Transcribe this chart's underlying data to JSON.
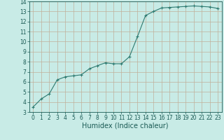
{
  "x": [
    0,
    1,
    2,
    3,
    4,
    5,
    6,
    7,
    8,
    9,
    10,
    11,
    12,
    13,
    14,
    15,
    16,
    17,
    18,
    19,
    20,
    21,
    22,
    23
  ],
  "y": [
    3.5,
    4.3,
    4.8,
    6.2,
    6.5,
    6.6,
    6.7,
    7.3,
    7.6,
    7.9,
    7.8,
    7.8,
    8.5,
    10.5,
    12.6,
    13.0,
    13.35,
    13.4,
    13.45,
    13.5,
    13.55,
    13.5,
    13.45,
    13.3
  ],
  "line_color": "#2d7a70",
  "marker": "+",
  "marker_size": 3,
  "marker_color": "#2d7a70",
  "bg_color": "#c8ebe6",
  "grid_color": "#c0b09a",
  "xlabel": "Humidex (Indice chaleur)",
  "xlim": [
    -0.5,
    23.5
  ],
  "ylim": [
    3,
    14
  ],
  "yticks": [
    3,
    4,
    5,
    6,
    7,
    8,
    9,
    10,
    11,
    12,
    13,
    14
  ],
  "xticks": [
    0,
    1,
    2,
    3,
    4,
    5,
    6,
    7,
    8,
    9,
    10,
    11,
    12,
    13,
    14,
    15,
    16,
    17,
    18,
    19,
    20,
    21,
    22,
    23
  ],
  "tick_label_fontsize": 5.5,
  "xlabel_fontsize": 7.0,
  "label_color": "#1a5a54",
  "spine_color": "#1a5a54",
  "linewidth": 0.8
}
